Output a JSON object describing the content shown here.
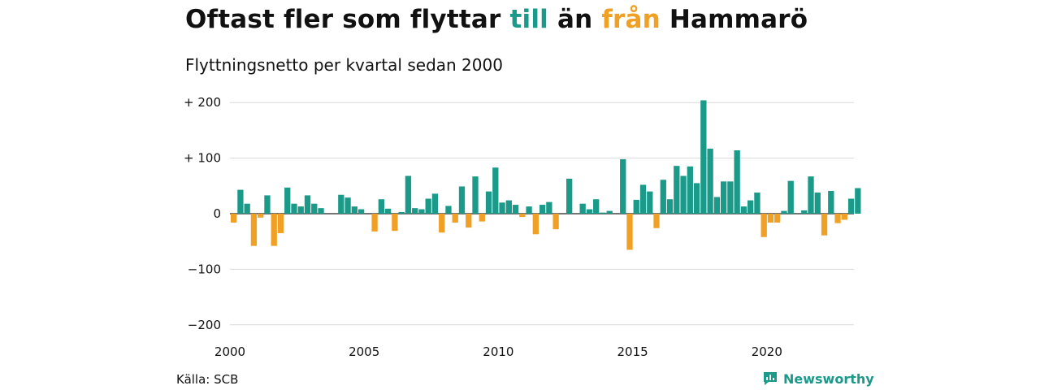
{
  "title": {
    "part1": "Oftast fler som flyttar ",
    "highlight_to": "till",
    "part2": " än ",
    "highlight_from": "från",
    "part3": " Hammarö"
  },
  "subtitle": "Flyttningsnetto per kvartal sedan 2000",
  "source": "Källa: SCB",
  "brand": "Newsworthy",
  "colors": {
    "positive": "#1b9a8a",
    "negative": "#f0a024",
    "grid": "#d9d9d9",
    "text": "#111111"
  },
  "chart_data": {
    "type": "bar",
    "start_year": 2000,
    "periods_per_year": 4,
    "x_tick_labels": [
      "2000",
      "2005",
      "2010",
      "2015",
      "2020"
    ],
    "y_ticks": [
      200,
      100,
      0,
      -100,
      -200
    ],
    "y_tick_labels": [
      "+ 200",
      "+ 100",
      "0",
      "−100",
      "−200"
    ],
    "ylim": [
      -200,
      200
    ],
    "grid": true,
    "values": [
      -16,
      43,
      18,
      -58,
      -7,
      33,
      -58,
      -35,
      47,
      18,
      13,
      33,
      18,
      10,
      0,
      0,
      34,
      29,
      13,
      8,
      0,
      -32,
      26,
      9,
      -31,
      3,
      68,
      10,
      8,
      27,
      36,
      -34,
      14,
      -16,
      49,
      -25,
      67,
      -14,
      40,
      83,
      20,
      24,
      16,
      -6,
      13,
      -37,
      16,
      21,
      -28,
      0,
      63,
      0,
      18,
      8,
      26,
      2,
      5,
      0,
      98,
      -65,
      25,
      52,
      40,
      -26,
      61,
      26,
      86,
      68,
      85,
      55,
      204,
      117,
      30,
      58,
      58,
      114,
      13,
      24,
      38,
      -42,
      -16,
      -16,
      5,
      59,
      0,
      6,
      67,
      38,
      -39,
      41,
      -17,
      -11,
      27,
      46
    ]
  }
}
